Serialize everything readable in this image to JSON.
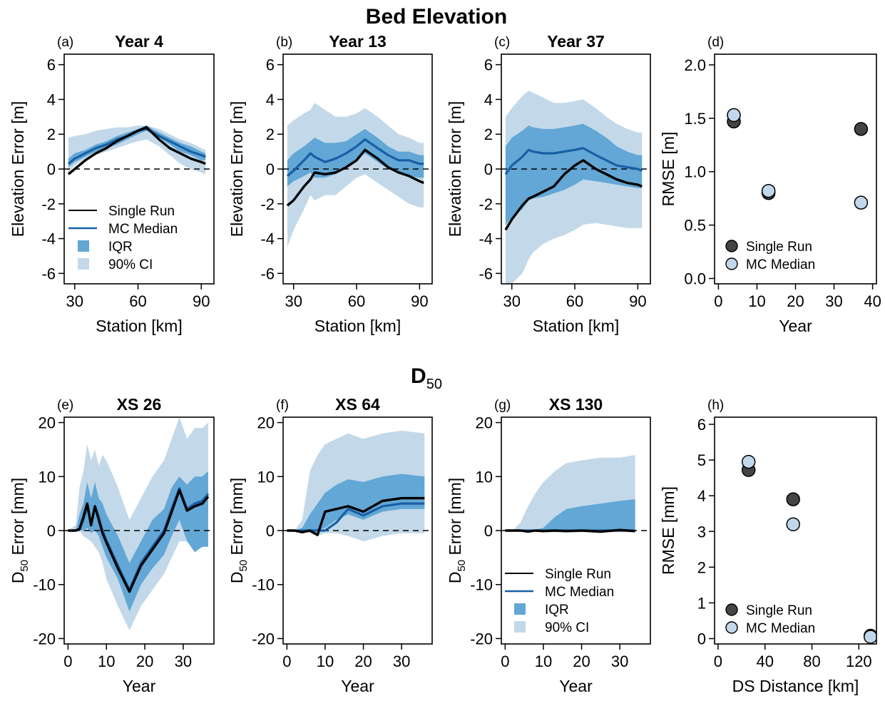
{
  "header_top": {
    "title": "Bed Elevation"
  },
  "header_bottom": {
    "title_main": "D",
    "title_sub": "50"
  },
  "colors": {
    "ci90": "#c3d9e9",
    "iqr": "#62a7d5",
    "median": "#175fa6",
    "single": "#000000",
    "single_marker": "#444444",
    "mc_marker": "#c0d7ec"
  },
  "legend_band": {
    "single": "Single Run",
    "median": "MC Median",
    "iqr": "IQR",
    "ci": "90% CI"
  },
  "legend_rmse": {
    "single": "Single Run",
    "median": "MC Median"
  },
  "chart_data": [
    {
      "id": "a",
      "type": "area",
      "label": "(a)",
      "title": "Year 4",
      "xlabel": "Station [km]",
      "ylabel": "Elevation Error [m]",
      "xlim": [
        25,
        96
      ],
      "ylim": [
        -6.6,
        6.6
      ],
      "xticks": [
        30,
        60,
        90
      ],
      "yticks": [
        -6,
        -4,
        -2,
        0,
        2,
        4,
        6
      ],
      "x": [
        27,
        30,
        35,
        40,
        45,
        50,
        55,
        60,
        64,
        70,
        75,
        80,
        85,
        90,
        92
      ],
      "ci_low": [
        -0.2,
        0.2,
        0.6,
        0.8,
        1.0,
        1.2,
        1.4,
        1.6,
        1.7,
        1.3,
        0.8,
        0.3,
        0.0,
        -0.2,
        -0.3
      ],
      "ci_high": [
        1.8,
        1.9,
        2.0,
        2.2,
        2.3,
        2.4,
        2.4,
        2.5,
        2.5,
        2.3,
        2.0,
        1.7,
        1.5,
        1.2,
        1.1
      ],
      "iqr_low": [
        0.1,
        0.4,
        0.7,
        1.0,
        1.2,
        1.4,
        1.7,
        2.0,
        2.2,
        1.8,
        1.4,
        1.0,
        0.8,
        0.5,
        0.5
      ],
      "iqr_high": [
        0.6,
        0.9,
        1.1,
        1.4,
        1.6,
        1.9,
        2.1,
        2.3,
        2.5,
        2.1,
        1.8,
        1.5,
        1.3,
        1.0,
        0.9
      ],
      "median": [
        0.3,
        0.6,
        0.9,
        1.2,
        1.4,
        1.7,
        1.9,
        2.2,
        2.3,
        1.9,
        1.6,
        1.3,
        1.0,
        0.8,
        0.7
      ],
      "single": [
        -0.3,
        0.0,
        0.5,
        0.9,
        1.2,
        1.6,
        1.9,
        2.2,
        2.4,
        1.7,
        1.2,
        0.9,
        0.6,
        0.4,
        0.3
      ],
      "legend": true
    },
    {
      "id": "b",
      "type": "area",
      "label": "(b)",
      "title": "Year 13",
      "xlabel": "Station [km]",
      "ylabel": "Elevation Error [m]",
      "xlim": [
        25,
        96
      ],
      "ylim": [
        -6.6,
        6.6
      ],
      "xticks": [
        30,
        60,
        90
      ],
      "yticks": [
        -6,
        -4,
        -2,
        0,
        2,
        4,
        6
      ],
      "x": [
        27,
        30,
        35,
        38,
        40,
        45,
        50,
        55,
        60,
        64,
        70,
        75,
        80,
        85,
        90,
        92
      ],
      "ci_low": [
        -4.5,
        -3.5,
        -2.3,
        -1.5,
        -1.8,
        -1.5,
        -1.5,
        -1.0,
        -0.5,
        -0.3,
        -0.8,
        -1.2,
        -1.6,
        -2.0,
        -2.2,
        -2.2
      ],
      "ci_high": [
        2.5,
        2.8,
        3.2,
        3.4,
        3.8,
        3.4,
        3.0,
        3.0,
        3.2,
        3.5,
        3.0,
        2.5,
        2.0,
        1.8,
        1.5,
        1.5
      ],
      "iqr_low": [
        -1.0,
        -0.7,
        -0.4,
        -0.2,
        -0.5,
        -0.5,
        -0.3,
        0.0,
        0.5,
        0.9,
        0.4,
        0.0,
        -0.2,
        -0.4,
        -0.5,
        -0.5
      ],
      "iqr_high": [
        0.5,
        0.9,
        1.3,
        1.6,
        1.8,
        1.5,
        1.5,
        1.6,
        2.0,
        2.3,
        1.8,
        1.3,
        1.0,
        1.0,
        0.8,
        0.8
      ],
      "median": [
        -0.4,
        -0.1,
        0.5,
        0.9,
        0.7,
        0.4,
        0.6,
        0.9,
        1.3,
        1.7,
        1.2,
        0.8,
        0.5,
        0.5,
        0.3,
        0.3
      ],
      "single": [
        -2.1,
        -1.8,
        -1.0,
        -0.6,
        -0.2,
        -0.3,
        -0.2,
        0.1,
        0.5,
        1.1,
        0.6,
        0.1,
        -0.2,
        -0.4,
        -0.7,
        -0.8
      ],
      "legend": false
    },
    {
      "id": "c",
      "type": "area",
      "label": "(c)",
      "title": "Year 37",
      "xlabel": "Station [km]",
      "ylabel": "Elevation Error [m]",
      "xlim": [
        25,
        96
      ],
      "ylim": [
        -6.6,
        6.6
      ],
      "xticks": [
        30,
        60,
        90
      ],
      "yticks": [
        -6,
        -4,
        -2,
        0,
        2,
        4,
        6
      ],
      "x": [
        27,
        30,
        35,
        38,
        40,
        45,
        50,
        55,
        60,
        64,
        70,
        75,
        80,
        85,
        90,
        92
      ],
      "ci_low": [
        -6.6,
        -6.6,
        -6.0,
        -5.2,
        -4.8,
        -4.3,
        -4.0,
        -3.8,
        -3.5,
        -3.2,
        -3.1,
        -3.2,
        -3.3,
        -3.4,
        -3.4,
        -3.4
      ],
      "ci_high": [
        3.0,
        3.5,
        4.2,
        4.5,
        4.4,
        4.1,
        3.8,
        3.8,
        3.9,
        4.0,
        3.5,
        3.0,
        2.6,
        2.3,
        2.1,
        2.1
      ],
      "iqr_low": [
        -3.2,
        -2.8,
        -2.3,
        -1.8,
        -1.7,
        -1.6,
        -1.4,
        -1.2,
        -0.9,
        -0.6,
        -0.7,
        -0.8,
        -0.9,
        -1.0,
        -1.1,
        -1.1
      ],
      "iqr_high": [
        1.3,
        1.8,
        2.2,
        2.5,
        2.4,
        2.3,
        2.3,
        2.4,
        2.5,
        2.6,
        2.2,
        1.8,
        1.3,
        1.0,
        0.8,
        0.8
      ],
      "median": [
        -0.3,
        0.2,
        0.7,
        1.1,
        1.0,
        0.9,
        0.9,
        1.0,
        1.1,
        1.2,
        0.8,
        0.5,
        0.2,
        0.1,
        0.0,
        -0.1
      ],
      "single": [
        -3.5,
        -2.9,
        -2.1,
        -1.7,
        -1.6,
        -1.3,
        -1.0,
        -0.3,
        0.2,
        0.5,
        0.0,
        -0.3,
        -0.6,
        -0.8,
        -0.9,
        -1.0
      ],
      "legend": false
    },
    {
      "id": "d",
      "type": "scatter",
      "label": "(d)",
      "title": "",
      "xlabel": "Year",
      "ylabel": "RMSE [m]",
      "xlim": [
        -1,
        41
      ],
      "ylim": [
        -0.05,
        2.1
      ],
      "xticks": [
        0,
        10,
        20,
        30,
        40
      ],
      "yticks": [
        0.0,
        0.5,
        1.0,
        1.5,
        2.0
      ],
      "ydecimals": 1,
      "single": {
        "x": [
          4,
          13,
          37
        ],
        "y": [
          1.47,
          0.8,
          1.4
        ]
      },
      "median": {
        "x": [
          4,
          13,
          37
        ],
        "y": [
          1.53,
          0.82,
          0.71
        ]
      },
      "legend": true
    },
    {
      "id": "e",
      "type": "area",
      "label": "(e)",
      "title": "XS 26",
      "xlabel": "Year",
      "ylabel": "D50 Error [mm]",
      "xlim": [
        -1,
        38
      ],
      "ylim": [
        -21,
        21
      ],
      "xticks": [
        0,
        10,
        20,
        30
      ],
      "yticks": [
        -20,
        -10,
        0,
        10,
        20
      ],
      "x": [
        0,
        2,
        3,
        4,
        5,
        6,
        7,
        8,
        9,
        10,
        13,
        16,
        19,
        22,
        25,
        27,
        29,
        31,
        33,
        35,
        36.5
      ],
      "ci_low": [
        0.0,
        0.0,
        0.0,
        -1.0,
        -1.5,
        -2.0,
        -3.0,
        -4.0,
        -6.0,
        -9.0,
        -14.0,
        -18.5,
        -14.0,
        -11.0,
        -8.0,
        -5.0,
        -2.0,
        -2.0,
        -3.0,
        -2.5,
        -2.5
      ],
      "ci_high": [
        0.0,
        1.0,
        8.0,
        11.0,
        16.0,
        13.0,
        15.0,
        12.0,
        14.0,
        13.0,
        8.0,
        2.0,
        6.0,
        10.0,
        13.0,
        17.0,
        21.0,
        17.0,
        19.0,
        19.0,
        20.0
      ],
      "iqr_low": [
        0.0,
        0.0,
        0.0,
        0.0,
        0.5,
        -0.5,
        0.0,
        -1.0,
        -3.0,
        -5.0,
        -9.0,
        -15.0,
        -10.0,
        -7.0,
        -4.5,
        -1.0,
        2.0,
        -2.0,
        -4.0,
        -3.0,
        -3.0
      ],
      "iqr_high": [
        0.0,
        0.0,
        3.0,
        5.0,
        9.0,
        6.0,
        9.0,
        6.0,
        5.0,
        3.0,
        -1.0,
        -6.0,
        -2.0,
        2.0,
        4.0,
        8.0,
        10.0,
        8.5,
        10.0,
        10.0,
        11.0
      ],
      "median": [
        0.0,
        0.0,
        0.2,
        2.0,
        4.5,
        1.0,
        4.5,
        2.5,
        0.0,
        -1.8,
        -6.5,
        -11.0,
        -6.0,
        -3.0,
        0.0,
        4.0,
        7.8,
        4.0,
        5.0,
        5.5,
        6.8
      ],
      "single": [
        0.0,
        0.0,
        0.3,
        2.5,
        5.0,
        1.0,
        4.5,
        2.0,
        -0.5,
        -2.2,
        -7.0,
        -11.3,
        -6.5,
        -3.5,
        -0.5,
        3.5,
        7.5,
        3.7,
        4.5,
        5.0,
        6.3
      ],
      "legend": false
    },
    {
      "id": "f",
      "type": "area",
      "label": "(f)",
      "title": "XS 64",
      "xlabel": "Year",
      "ylabel": "D50 Error [mm]",
      "xlim": [
        -1,
        38
      ],
      "ylim": [
        -21,
        21
      ],
      "xticks": [
        0,
        10,
        20,
        30
      ],
      "yticks": [
        -20,
        -10,
        0,
        10,
        20
      ],
      "x": [
        0,
        2,
        4,
        6,
        8,
        10,
        13,
        16,
        20,
        25,
        30,
        36
      ],
      "ci_low": [
        0.0,
        0.0,
        0.0,
        -0.5,
        -1.0,
        -0.5,
        -0.5,
        -1.0,
        -2.0,
        -1.0,
        -0.5,
        -0.5
      ],
      "ci_high": [
        0.0,
        0.0,
        2.0,
        11.0,
        14.0,
        16.0,
        17.0,
        18.0,
        17.0,
        18.0,
        18.5,
        18.0
      ],
      "iqr_low": [
        0.0,
        0.0,
        0.0,
        0.0,
        0.0,
        0.5,
        2.0,
        3.0,
        2.0,
        3.5,
        4.0,
        4.0
      ],
      "iqr_high": [
        0.0,
        0.0,
        0.5,
        3.0,
        5.0,
        7.0,
        8.5,
        9.5,
        9.0,
        10.0,
        10.5,
        10.0
      ],
      "median": [
        0.0,
        0.0,
        0.0,
        0.0,
        0.0,
        0.0,
        1.5,
        4.0,
        2.8,
        4.5,
        5.0,
        5.0
      ],
      "single": [
        0.0,
        0.0,
        -0.3,
        0.0,
        -0.8,
        3.5,
        4.0,
        4.5,
        3.5,
        5.5,
        6.0,
        6.0
      ],
      "legend": false
    },
    {
      "id": "g",
      "type": "area",
      "label": "(g)",
      "title": "XS 130",
      "xlabel": "Year",
      "ylabel": "D50 Error [mm]",
      "xlim": [
        -1,
        38
      ],
      "ylim": [
        -21,
        21
      ],
      "xticks": [
        0,
        10,
        20,
        30
      ],
      "yticks": [
        -20,
        -10,
        0,
        10,
        20
      ],
      "x": [
        0,
        2,
        4,
        6,
        8,
        10,
        13,
        16,
        20,
        25,
        30,
        34
      ],
      "ci_low": [
        0.0,
        0.0,
        0.0,
        0.0,
        -0.2,
        -0.2,
        -0.3,
        -0.3,
        -0.3,
        -0.3,
        -0.3,
        -0.3
      ],
      "ci_high": [
        0.0,
        0.0,
        1.5,
        4.5,
        7.0,
        9.0,
        11.0,
        12.5,
        13.0,
        13.5,
        13.5,
        14.0
      ],
      "iqr_low": [
        0.0,
        0.0,
        0.0,
        0.0,
        0.0,
        0.0,
        0.0,
        0.0,
        0.0,
        0.0,
        0.0,
        0.0
      ],
      "iqr_high": [
        0.0,
        0.0,
        0.0,
        0.0,
        0.2,
        0.5,
        2.5,
        4.0,
        4.5,
        5.0,
        5.5,
        5.8
      ],
      "median": [
        0.0,
        0.0,
        0.0,
        0.0,
        0.0,
        0.0,
        0.0,
        0.0,
        0.0,
        0.0,
        0.0,
        0.0
      ],
      "single": [
        0.0,
        0.0,
        0.0,
        -0.2,
        0.0,
        -0.1,
        0.0,
        -0.1,
        0.0,
        -0.2,
        0.1,
        -0.1
      ],
      "legend": true
    },
    {
      "id": "h",
      "type": "scatter",
      "label": "(h)",
      "title": "",
      "xlabel": "DS Distance [km]",
      "ylabel": "RMSE [mm]",
      "xlim": [
        -3,
        135
      ],
      "ylim": [
        -0.15,
        6.2
      ],
      "xticks": [
        0,
        40,
        80,
        120
      ],
      "yticks": [
        0,
        1,
        2,
        3,
        4,
        5,
        6
      ],
      "ydecimals": 0,
      "single": {
        "x": [
          26,
          64,
          130
        ],
        "y": [
          4.72,
          3.9,
          0.08
        ]
      },
      "median": {
        "x": [
          26,
          64,
          130
        ],
        "y": [
          4.95,
          3.2,
          0.05
        ]
      },
      "legend": true
    }
  ]
}
